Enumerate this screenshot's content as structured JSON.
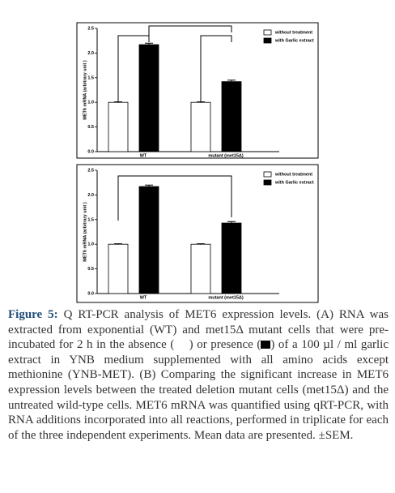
{
  "chart_data": [
    {
      "type": "bar",
      "y_label": "MET6 mRNA (arbitrary unit )",
      "categories": [
        "WT",
        "mutant (met15Δ)"
      ],
      "series": [
        {
          "name": "without treatment",
          "color": "#ffffff",
          "values": [
            1.0,
            1.0
          ],
          "errors": [
            0.01,
            0.01
          ]
        },
        {
          "name": "with Garlic extract",
          "color": "#000000",
          "values": [
            2.17,
            1.42
          ],
          "errors": [
            0.03,
            0.03
          ]
        }
      ],
      "ylim": [
        0,
        2.5
      ],
      "yticks": [
        {
          "value": 0,
          "label": "0.0"
        },
        0.5,
        {
          "value": 1,
          "label": "1.0"
        },
        1.5,
        {
          "value": 2,
          "label": "2.0"
        },
        2.5
      ],
      "legend": "upper right"
    },
    {
      "type": "bar",
      "y_label": "MET6 mRNA (arbitrary unit )",
      "categories": [
        "WT",
        "mutant (met15Δ)"
      ],
      "series": [
        {
          "name": "without treatment",
          "color": "#ffffff",
          "values": [
            1.0,
            1.0
          ],
          "errors": [
            0.01,
            0.01
          ]
        },
        {
          "name": "with Garlic extract",
          "color": "#000000",
          "values": [
            2.17,
            1.43
          ],
          "errors": [
            0.03,
            0.03
          ]
        }
      ],
      "ylim": [
        0,
        2.5
      ],
      "yticks": [
        {
          "value": 0,
          "label": "0.0"
        },
        0.5,
        {
          "value": 1,
          "label": "1.0"
        },
        1.5,
        {
          "value": 2,
          "label": "2.0"
        },
        2.5
      ],
      "legend": "upper right"
    }
  ],
  "caption": {
    "label": "Figure 5:",
    "parts": [
      " Q RT-PCR analysis of MET6 expression levels. (A) RNA was extracted from exponential (WT) and met15Δ mutant cells that were pre-incubated for 2 h in the absence (",
      ") or presence (",
      ") of a 100 µl / ml garlic extract in YNB medium supplemented with all amino acids except methionine (YNB-MET). (B) Comparing the significant increase in MET6 expression levels between the treated deletion mutant cells (met15Δ) and the untreated wild-type cells. MET6 mRNA was quantified using qRT-PCR, with RNA additions incorporated into all reactions, performed in triplicate for each of the three independent experiments. Mean data are presented. ±SEM."
    ]
  }
}
